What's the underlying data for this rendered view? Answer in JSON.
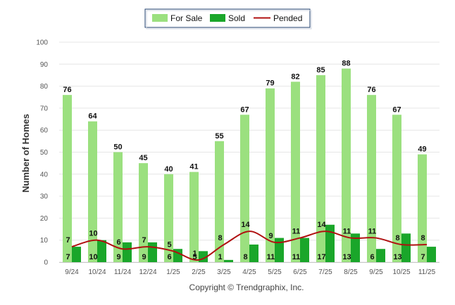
{
  "chart_data": {
    "type": "bar",
    "title": "",
    "xlabel": "",
    "ylabel": "Number of Homes",
    "ylim": [
      0,
      100
    ],
    "yticks": [
      0,
      10,
      20,
      30,
      40,
      50,
      60,
      70,
      80,
      90,
      100
    ],
    "categories": [
      "9/24",
      "10/24",
      "11/24",
      "12/24",
      "1/25",
      "2/25",
      "3/25",
      "4/25",
      "5/25",
      "6/25",
      "7/25",
      "8/25",
      "9/25",
      "10/25",
      "11/25"
    ],
    "series": [
      {
        "name": "For Sale",
        "kind": "bar",
        "color": "#9be07f",
        "values": [
          76,
          64,
          50,
          45,
          40,
          41,
          55,
          67,
          79,
          82,
          85,
          88,
          76,
          67,
          49
        ]
      },
      {
        "name": "Sold",
        "kind": "bar",
        "color": "#1aa62a",
        "values": [
          7,
          10,
          9,
          9,
          6,
          5,
          1,
          8,
          11,
          11,
          17,
          13,
          6,
          13,
          7
        ]
      },
      {
        "name": "Pended",
        "kind": "line",
        "color": "#b01010",
        "values": [
          7,
          10,
          6,
          7,
          5,
          1,
          8,
          14,
          9,
          11,
          14,
          11,
          11,
          8,
          8
        ]
      }
    ],
    "legend_position": "top-center",
    "grid": true
  },
  "copyright": "Copyright © Trendgraphix, Inc."
}
